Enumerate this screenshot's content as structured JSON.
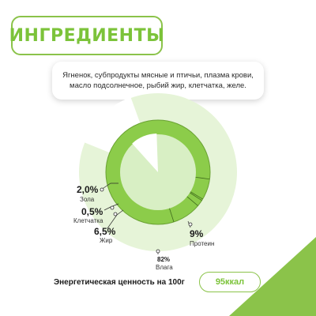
{
  "title": "ИНГРЕДИЕНТЫ",
  "ingredients_text": "Ягненок, субпродукты мясные и птичьи, плазма крови, масло подсолнечное, рыбий жир, клетчатка, желе.",
  "energy": {
    "label": "Энергетическая ценность на 100г",
    "value": "95ккал"
  },
  "colors": {
    "accent": "#7cc33a",
    "ring_dark": "#8ccc4a",
    "ring_light": "#d8efc4",
    "outer_light": "#e6f4d8",
    "corner": "#8bc34a"
  },
  "chart_data": {
    "type": "pie",
    "categories": [
      "Протеин",
      "Влага",
      "Жир",
      "Клетчатка",
      "Зола"
    ],
    "values": [
      9,
      82,
      6.5,
      0.5,
      2.0
    ],
    "value_labels": [
      "9%",
      "82%",
      "6,5%",
      "0,5%",
      "2,0%"
    ]
  }
}
